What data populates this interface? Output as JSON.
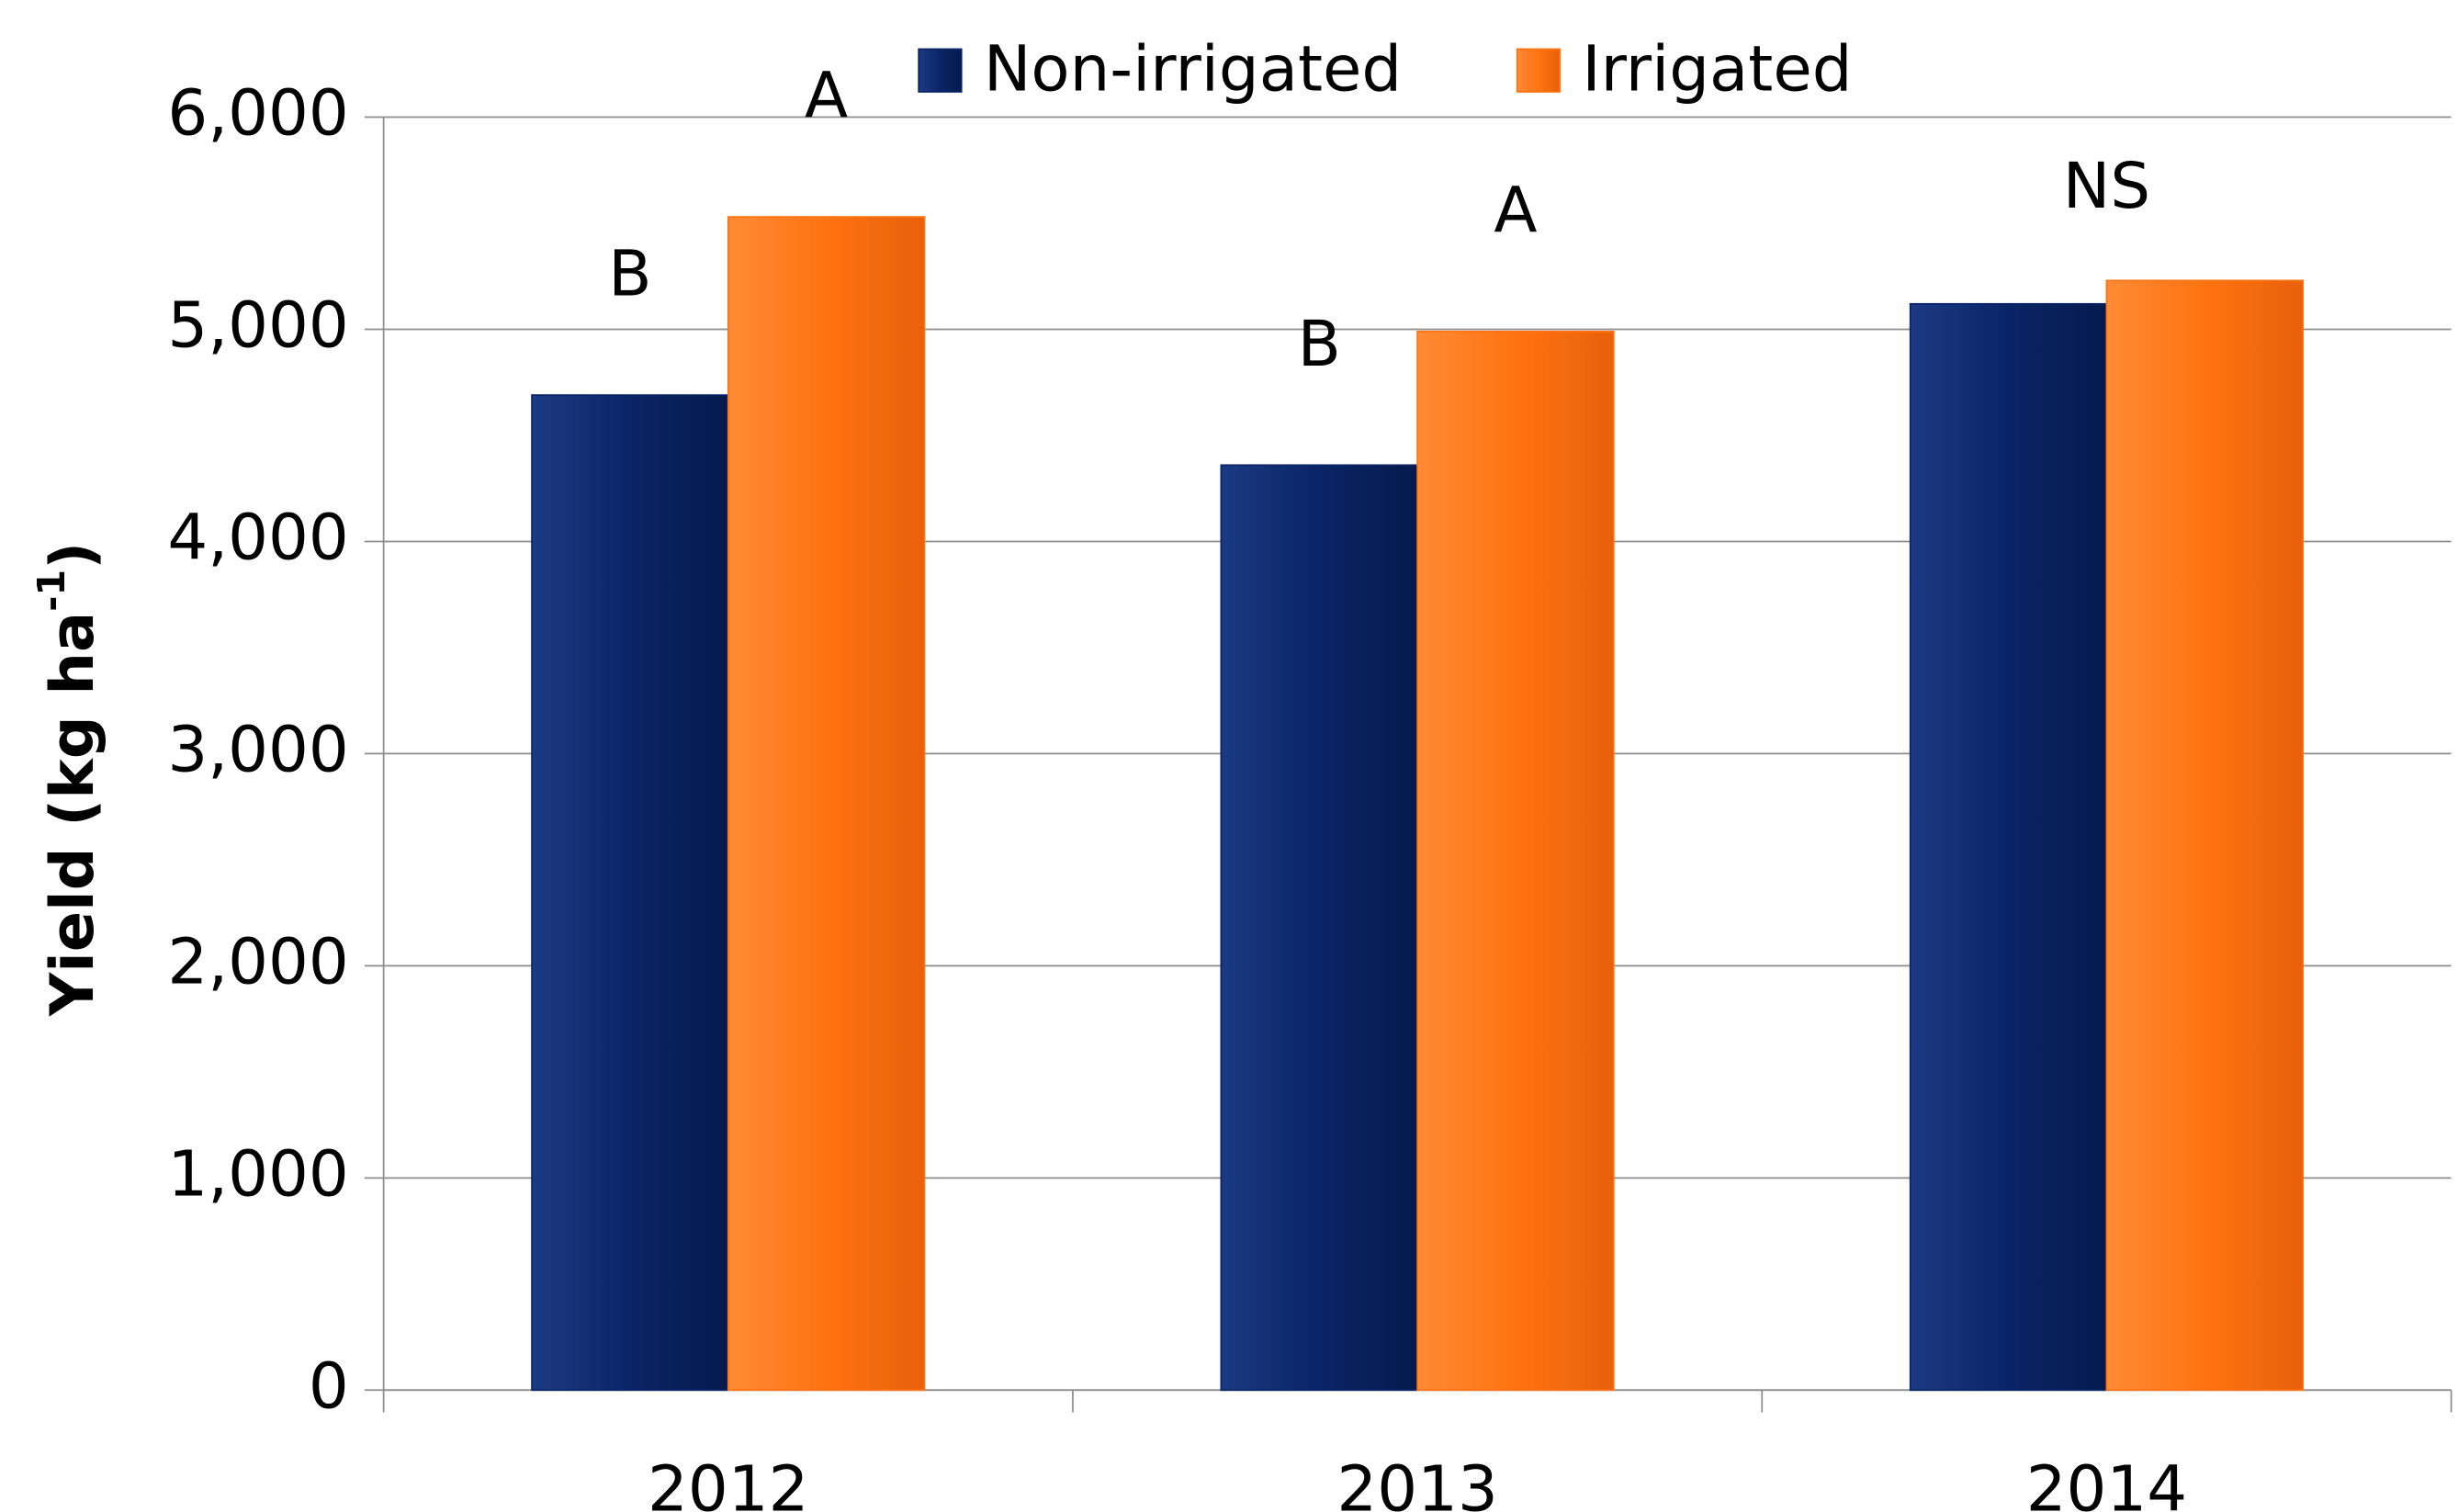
{
  "chart_data": {
    "type": "bar",
    "ylabel": [
      "Yield (kg ha",
      "-1",
      ")"
    ],
    "categories": [
      "2012",
      "2013",
      "2014"
    ],
    "series": [
      {
        "name": "Non-irrigated",
        "color": "#0a2566",
        "values": [
          4690,
          4360,
          5120
        ]
      },
      {
        "name": "Irrigated",
        "color": "#ff7311",
        "values": [
          5530,
          4990,
          5230
        ]
      }
    ],
    "annotations": [
      [
        "B",
        "A"
      ],
      [
        "B",
        "A"
      ],
      [
        "NS"
      ]
    ],
    "ylim": [
      0,
      6000
    ],
    "yticks": [
      0,
      {
        "value": 1000,
        "label": "1,000"
      },
      {
        "value": 2000,
        "label": "2,000"
      },
      {
        "value": 3000,
        "label": "3,000"
      },
      {
        "value": 4000,
        "label": "4,000"
      },
      {
        "value": 5000,
        "label": "5,000"
      },
      {
        "value": 6000,
        "label": "6,000"
      }
    ],
    "grid": true,
    "legend": "top"
  }
}
